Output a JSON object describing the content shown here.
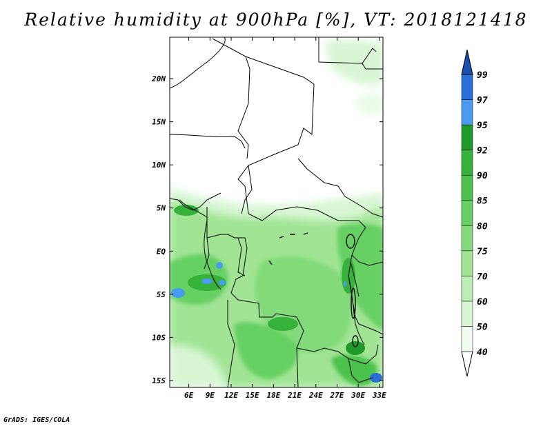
{
  "chart_data": {
    "type": "heatmap",
    "title": "Relative humidity at 900hPa [%], VT: 2018121418",
    "xlabel": "",
    "ylabel": "",
    "x_tick_labels": [
      "6E",
      "9E",
      "12E",
      "15E",
      "18E",
      "21E",
      "24E",
      "27E",
      "30E",
      "33E"
    ],
    "x_tick_values": [
      6,
      9,
      12,
      15,
      18,
      21,
      24,
      27,
      30,
      33
    ],
    "y_tick_labels": [
      "20N",
      "15N",
      "10N",
      "5N",
      "EQ",
      "5S",
      "10S",
      "15S"
    ],
    "y_tick_values": [
      20,
      15,
      10,
      5,
      0,
      -5,
      -10,
      -15
    ],
    "xlim": [
      3.3,
      33.5
    ],
    "ylim": [
      -15.8,
      24.8
    ],
    "units": "%",
    "colorbar": {
      "levels": [
        40,
        50,
        60,
        70,
        75,
        80,
        85,
        90,
        92,
        95,
        97,
        99
      ],
      "colors": [
        "#f0fdf0",
        "#d8f6d4",
        "#bcefb4",
        "#a0e494",
        "#82da7a",
        "#66d064",
        "#4cc24c",
        "#36b23a",
        "#1f9a28",
        "#4a9bf0",
        "#2a6fd8",
        "#1a4fb0"
      ],
      "extend": "both"
    },
    "grid": false,
    "legend": "colorbar-right"
  },
  "credit": "GrADS: IGES/COLA"
}
